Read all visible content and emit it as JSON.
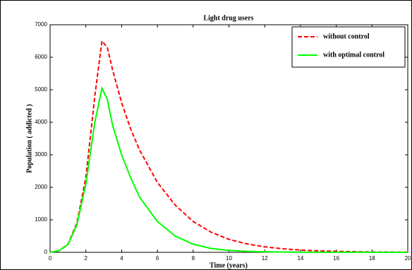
{
  "chart_data": {
    "type": "line",
    "title": "Light drug users",
    "x_label": "Time (years)",
    "y_label": "Population ( addicted )",
    "x": [
      0,
      0.5,
      1,
      1.5,
      2,
      2.5,
      2.9,
      3.2,
      3.5,
      4,
      4.5,
      5,
      6,
      7,
      8,
      9,
      10,
      11,
      12,
      13,
      14,
      15,
      16,
      18,
      20
    ],
    "series": [
      {
        "name": "without control",
        "color": "#ff0000",
        "dash": true,
        "values": [
          0,
          50,
          250,
          900,
          2300,
          4800,
          6500,
          6300,
          5600,
          4600,
          3800,
          3150,
          2150,
          1450,
          950,
          620,
          400,
          260,
          170,
          110,
          70,
          45,
          30,
          10,
          5
        ]
      },
      {
        "name": "with optimal control",
        "color": "#00ff00",
        "dash": false,
        "values": [
          0,
          50,
          240,
          850,
          2100,
          4000,
          5050,
          4700,
          3900,
          3000,
          2300,
          1700,
          950,
          500,
          250,
          120,
          60,
          30,
          15,
          8,
          5,
          3,
          2,
          1,
          0
        ]
      }
    ],
    "xlim": [
      0,
      20
    ],
    "xticks": [
      0,
      2,
      4,
      6,
      8,
      10,
      12,
      14,
      16,
      18,
      20
    ],
    "ylim": [
      0,
      7000
    ],
    "yticks": [
      0,
      1000,
      2000,
      3000,
      4000,
      5000,
      6000,
      7000
    ],
    "legend": "upper right",
    "grid": false
  }
}
